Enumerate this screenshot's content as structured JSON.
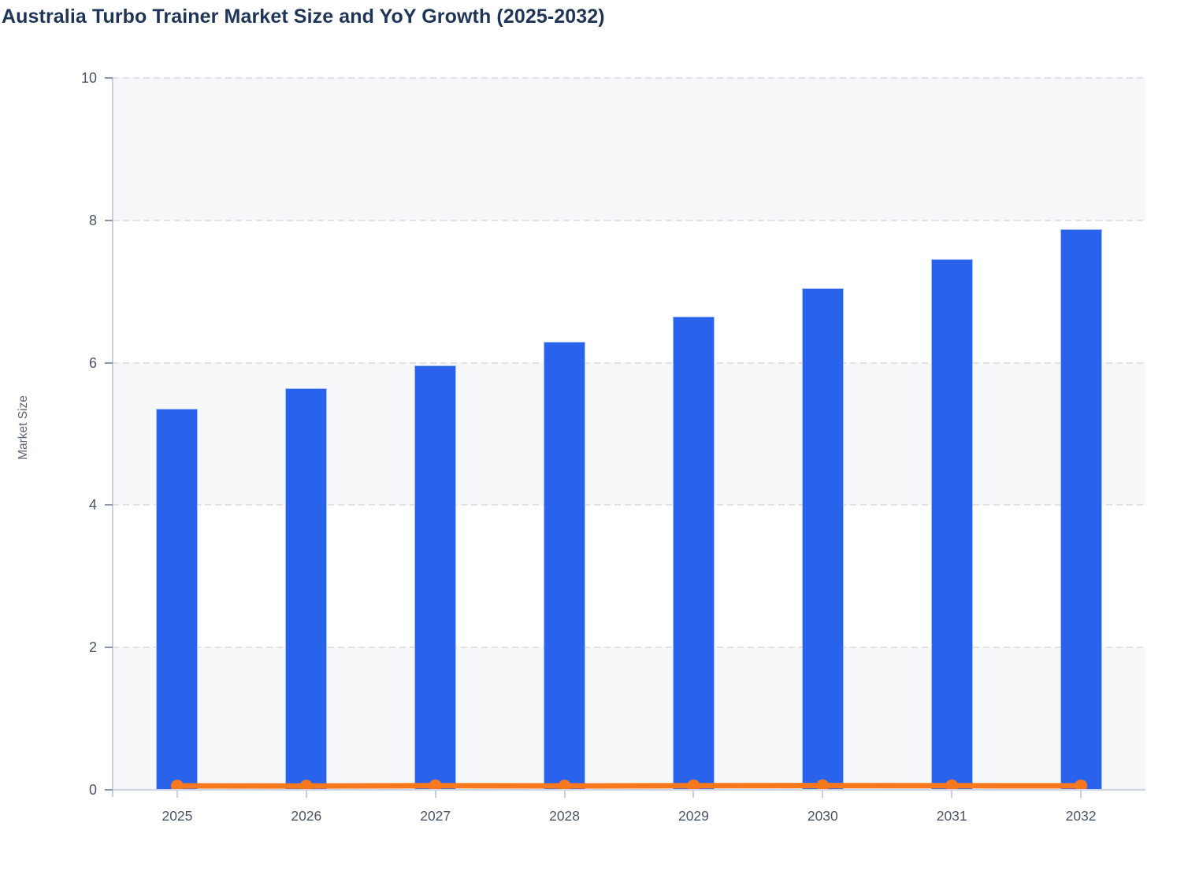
{
  "chart_data": {
    "type": "bar+line",
    "title": "Australia Turbo Trainer Market Size and YoY Growth (2025-2032)",
    "xlabel": "",
    "ylabel": "Market Size",
    "categories": [
      "2025",
      "2026",
      "2027",
      "2028",
      "2029",
      "2030",
      "2031",
      "2032"
    ],
    "series": [
      {
        "name": "Market Size",
        "type": "bar",
        "values": [
          5.35,
          5.64,
          5.96,
          6.29,
          6.65,
          7.05,
          7.46,
          7.88
        ]
      },
      {
        "name": "YoY Growth",
        "type": "line",
        "values": [
          0.055,
          0.054,
          0.057,
          0.055,
          0.057,
          0.06,
          0.058,
          0.056
        ]
      }
    ],
    "ylim": [
      0,
      10
    ],
    "yticks": [
      0,
      2,
      4,
      6,
      8,
      10
    ],
    "grid": "horizontal-dashed",
    "legend": "none",
    "background_bands": "alternating-light-from-top"
  },
  "colors": {
    "bar_fill": "#2962eb",
    "bar_border": "#a8c1f8",
    "line": "#f8791d",
    "title_text": "#1f3557",
    "axis_text": "#4a5568",
    "band": "#f6f7f9",
    "gridline": "#dfe2e8",
    "axis_line": "#ccd4e6"
  }
}
